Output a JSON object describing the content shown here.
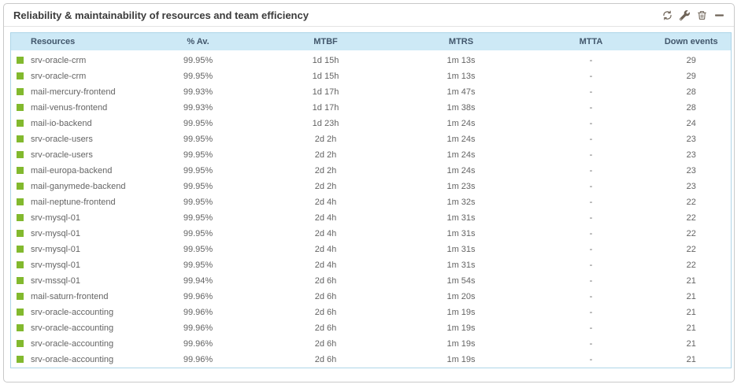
{
  "widget": {
    "title": "Reliability & maintainability of resources and team efficiency",
    "toolbar": {
      "refresh": "refresh",
      "configure": "configure",
      "delete": "delete",
      "minimize": "minimize"
    }
  },
  "table": {
    "columns": [
      {
        "key": "resource",
        "label": "Resources"
      },
      {
        "key": "availability",
        "label": "% Av."
      },
      {
        "key": "mtbf",
        "label": "MTBF"
      },
      {
        "key": "mtrs",
        "label": "MTRS"
      },
      {
        "key": "mtta",
        "label": "MTTA"
      },
      {
        "key": "down_events",
        "label": "Down events"
      }
    ],
    "rows": [
      {
        "status": "ok",
        "resource": "srv-oracle-crm",
        "availability": "99.95%",
        "mtbf": "1d 15h",
        "mtrs": "1m 13s",
        "mtta": "-",
        "down_events": "29"
      },
      {
        "status": "ok",
        "resource": "srv-oracle-crm",
        "availability": "99.95%",
        "mtbf": "1d 15h",
        "mtrs": "1m 13s",
        "mtta": "-",
        "down_events": "29"
      },
      {
        "status": "ok",
        "resource": "mail-mercury-frontend",
        "availability": "99.93%",
        "mtbf": "1d 17h",
        "mtrs": "1m 47s",
        "mtta": "-",
        "down_events": "28"
      },
      {
        "status": "ok",
        "resource": "mail-venus-frontend",
        "availability": "99.93%",
        "mtbf": "1d 17h",
        "mtrs": "1m 38s",
        "mtta": "-",
        "down_events": "28"
      },
      {
        "status": "ok",
        "resource": "mail-io-backend",
        "availability": "99.95%",
        "mtbf": "1d 23h",
        "mtrs": "1m 24s",
        "mtta": "-",
        "down_events": "24"
      },
      {
        "status": "ok",
        "resource": "srv-oracle-users",
        "availability": "99.95%",
        "mtbf": "2d 2h",
        "mtrs": "1m 24s",
        "mtta": "-",
        "down_events": "23"
      },
      {
        "status": "ok",
        "resource": "srv-oracle-users",
        "availability": "99.95%",
        "mtbf": "2d 2h",
        "mtrs": "1m 24s",
        "mtta": "-",
        "down_events": "23"
      },
      {
        "status": "ok",
        "resource": "mail-europa-backend",
        "availability": "99.95%",
        "mtbf": "2d 2h",
        "mtrs": "1m 24s",
        "mtta": "-",
        "down_events": "23"
      },
      {
        "status": "ok",
        "resource": "mail-ganymede-backend",
        "availability": "99.95%",
        "mtbf": "2d 2h",
        "mtrs": "1m 23s",
        "mtta": "-",
        "down_events": "23"
      },
      {
        "status": "ok",
        "resource": "mail-neptune-frontend",
        "availability": "99.95%",
        "mtbf": "2d 4h",
        "mtrs": "1m 32s",
        "mtta": "-",
        "down_events": "22"
      },
      {
        "status": "ok",
        "resource": "srv-mysql-01",
        "availability": "99.95%",
        "mtbf": "2d 4h",
        "mtrs": "1m 31s",
        "mtta": "-",
        "down_events": "22"
      },
      {
        "status": "ok",
        "resource": "srv-mysql-01",
        "availability": "99.95%",
        "mtbf": "2d 4h",
        "mtrs": "1m 31s",
        "mtta": "-",
        "down_events": "22"
      },
      {
        "status": "ok",
        "resource": "srv-mysql-01",
        "availability": "99.95%",
        "mtbf": "2d 4h",
        "mtrs": "1m 31s",
        "mtta": "-",
        "down_events": "22"
      },
      {
        "status": "ok",
        "resource": "srv-mysql-01",
        "availability": "99.95%",
        "mtbf": "2d 4h",
        "mtrs": "1m 31s",
        "mtta": "-",
        "down_events": "22"
      },
      {
        "status": "ok",
        "resource": "srv-mssql-01",
        "availability": "99.94%",
        "mtbf": "2d 6h",
        "mtrs": "1m 54s",
        "mtta": "-",
        "down_events": "21"
      },
      {
        "status": "ok",
        "resource": "mail-saturn-frontend",
        "availability": "99.96%",
        "mtbf": "2d 6h",
        "mtrs": "1m 20s",
        "mtta": "-",
        "down_events": "21"
      },
      {
        "status": "ok",
        "resource": "srv-oracle-accounting",
        "availability": "99.96%",
        "mtbf": "2d 6h",
        "mtrs": "1m 19s",
        "mtta": "-",
        "down_events": "21"
      },
      {
        "status": "ok",
        "resource": "srv-oracle-accounting",
        "availability": "99.96%",
        "mtbf": "2d 6h",
        "mtrs": "1m 19s",
        "mtta": "-",
        "down_events": "21"
      },
      {
        "status": "ok",
        "resource": "srv-oracle-accounting",
        "availability": "99.96%",
        "mtbf": "2d 6h",
        "mtrs": "1m 19s",
        "mtta": "-",
        "down_events": "21"
      },
      {
        "status": "ok",
        "resource": "srv-oracle-accounting",
        "availability": "99.96%",
        "mtbf": "2d 6h",
        "mtrs": "1m 19s",
        "mtta": "-",
        "down_events": "21"
      }
    ]
  },
  "colors": {
    "status_green": "#82b92e",
    "header_bg": "#cde9f6",
    "table_border": "#aed5e8",
    "title_text": "#3b3b3b",
    "header_text": "#41566b",
    "body_text": "#646464",
    "icon_color": "#6e6357"
  }
}
